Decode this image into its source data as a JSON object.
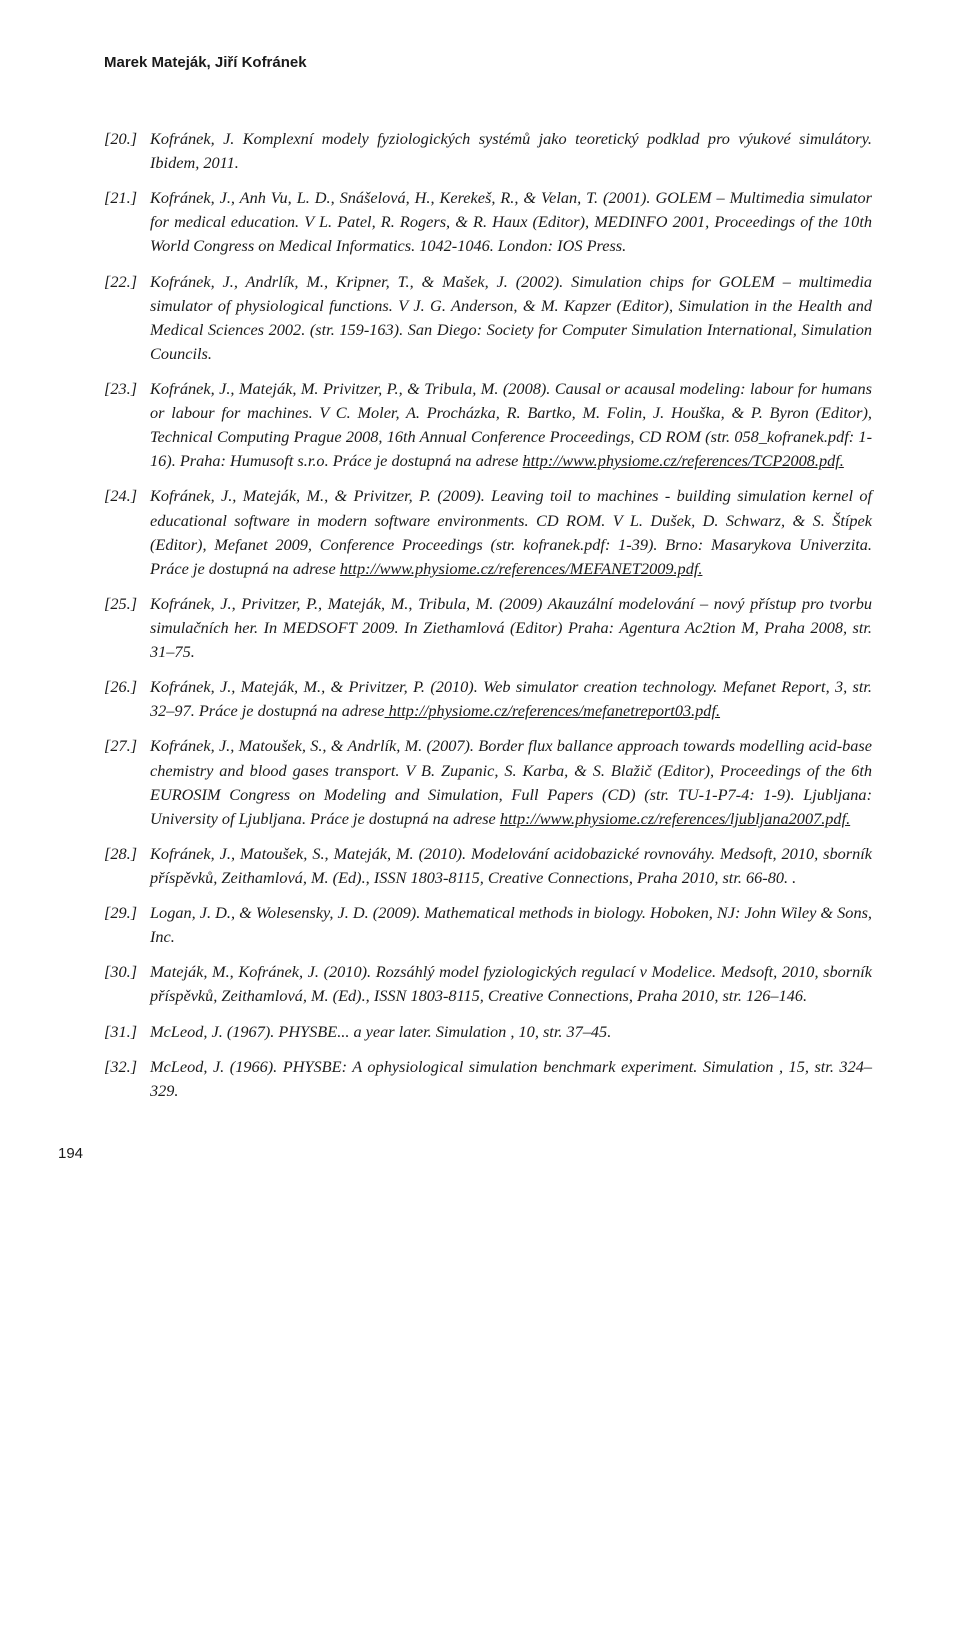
{
  "running_head": "Marek Mateják, Jiří Kofránek",
  "page_number": "194",
  "refs": [
    {
      "num": "[20.]",
      "prefix": "Kofránek, J. Komplexní modely fyziologických systémů jako teoretický podklad pro výukové simulátory. Ibidem, 2011.",
      "link": null,
      "suffix": null
    },
    {
      "num": "[21.]",
      "prefix": "Kofránek, J., Anh Vu, L. D., Snášelová, H., Kerekeš, R., & Velan, T. (2001). GOLEM – Multimedia simulator for medical education. V L. Patel, R. Rogers, & R. Haux (Editor), MEDINFO 2001, Proceedings of the 10th World Congress on Medical Informatics. 1042-1046. London: IOS Press.",
      "link": null,
      "suffix": null
    },
    {
      "num": "[22.]",
      "prefix": "Kofránek, J., Andrlík, M., Kripner, T., & Mašek, J. (2002). Simulation chips for GOLEM – multimedia simulator of physiological functions. V J. G. Anderson, & M. Kapzer (Editor), Simulation in the Health and Medical Sciences 2002. (str. 159-163). San Diego: Society for Computer Simulation International, Simulation Councils.",
      "link": null,
      "suffix": null
    },
    {
      "num": "[23.]",
      "prefix": "Kofránek, J., Mateják, M. Privitzer, P., & Tribula, M. (2008). Causal or acausal modeling: labour for humans or labour for machines. V C. Moler, A. Procházka, R. Bartko, M. Folin, J. Houška, & P. Byron (Editor), Technical Computing Prague 2008, 16th Annual Conference Proceedings, CD ROM (str. 058_kofranek.pdf: 1-16). Praha: Humusoft s.r.o. Práce je dostupná na adrese ",
      "link": "http://www.physiome.cz/references/TCP2008.pdf.",
      "suffix": null
    },
    {
      "num": "[24.]",
      "prefix": "Kofránek, J., Mateják, M., & Privitzer, P. (2009). Leaving toil to machines - building simulation kernel of educational software in modern software environments. CD ROM. V L. Dušek, D. Schwarz, & S. Štípek (Editor), Mefanet 2009, Conference Proceedings (str. kofranek.pdf: 1-39). Brno: Masarykova Univerzita. Práce je dostupná na adrese ",
      "link": "http://www.physiome.cz/references/MEFANET2009.pdf.",
      "suffix": null
    },
    {
      "num": "[25.]",
      "prefix": "Kofránek, J., Privitzer, P., Mateják, M., Tribula, M. (2009) Akauzální modelování – nový přístup pro tvorbu simulačních her. In MEDSOFT 2009. In Ziethamlová (Editor) Praha: Agentura Ac2tion M, Praha 2008, str. 31–75.",
      "link": null,
      "suffix": null
    },
    {
      "num": "[26.]",
      "prefix": "Kofránek, J., Mateják, M., & Privitzer, P. (2010). Web simulator creation technology. Mefanet Report, 3, str. 32–97. Práce je dostupná na adrese",
      "link": " http://physiome.cz/references/mefanetreport03.pdf.",
      "suffix": null
    },
    {
      "num": "[27.]",
      "prefix": "Kofránek, J., Matoušek, S., & Andrlík, M. (2007). Border flux ballance approach towards modelling acid-base chemistry and blood gases transport. V B. Zupanic, S. Karba, & S. Blažič (Editor), Proceedings of the 6th EUROSIM Congress on Modeling and Simulation, Full Papers (CD) (str. TU-1-P7-4: 1-9). Ljubljana: University of Ljubljana. Práce je dostupná na adrese ",
      "link": "http://www.physiome.cz/references/ljubljana2007.pdf.",
      "suffix": null
    },
    {
      "num": "[28.]",
      "prefix": " Kofránek, J., Matoušek, S., Mateják, M.  (2010). Modelování acidobazické rovnováhy. Medsoft, 2010, sborník příspěvků, Zeithamlová, M. (Ed)., ISSN 1803-8115, Creative Connections, Praha 2010, str.  66-80.  .",
      "link": null,
      "suffix": null
    },
    {
      "num": "[29.]",
      "prefix": "Logan, J. D., & Wolesensky, J. D. (2009). Mathematical methods in biology. Hoboken, NJ: John Wiley & Sons, Inc.",
      "link": null,
      "suffix": null
    },
    {
      "num": "[30.]",
      "prefix": "Mateják, M., Kofránek, J.  (2010). Rozsáhlý model fyziologických regulací v Modelice. Medsoft, 2010, sborník příspěvků, Zeithamlová, M. (Ed)., ISSN 1803-8115, Creative Connections, Praha 2010, str. 126–146.",
      "link": null,
      "suffix": null
    },
    {
      "num": "[31.]",
      "prefix": "McLeod, J. (1967). PHYSBE... a year later. Simulation , 10, str. 37–45.",
      "link": null,
      "suffix": null
    },
    {
      "num": "[32.]",
      "prefix": "McLeod, J. (1966). PHYSBE: A ophysiological simulation benchmark experiment. Simulation , 15, str. 324–329.",
      "link": null,
      "suffix": null
    }
  ]
}
